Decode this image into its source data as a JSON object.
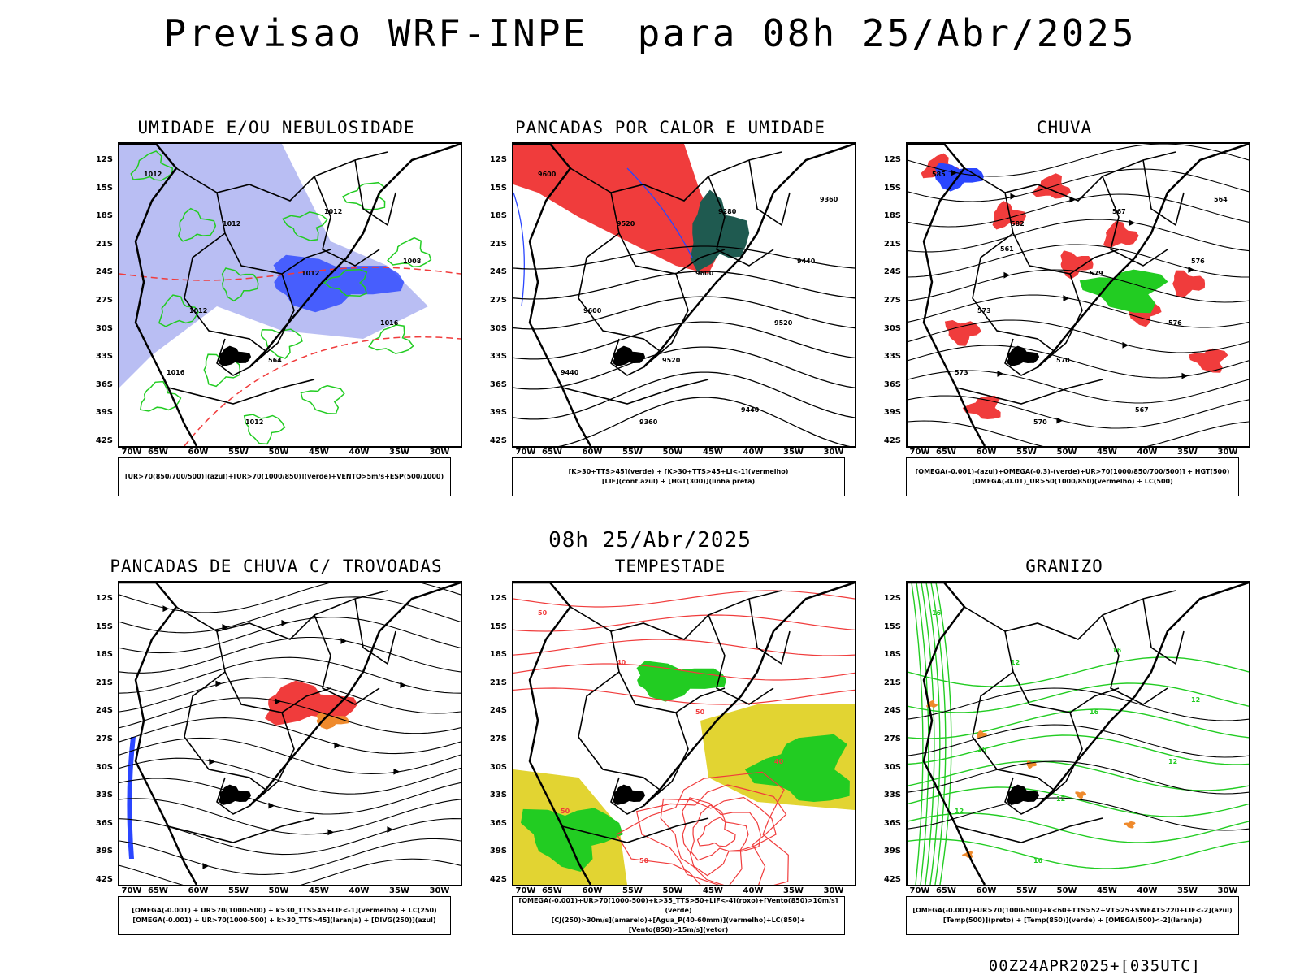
{
  "title": "Previsao WRF-INPE  para 08h 25/Abr/2025",
  "mid_date": "08h 25/Abr/2025",
  "footer": "00Z24APR2025+[035UTC]",
  "lat_labels": [
    "12S",
    "15S",
    "18S",
    "21S",
    "24S",
    "27S",
    "30S",
    "33S",
    "36S",
    "39S",
    "42S"
  ],
  "lon_labels": [
    "70W",
    "65W",
    "60W",
    "55W",
    "50W",
    "45W",
    "40W",
    "35W",
    "30W"
  ],
  "colors": {
    "red": "#f03c3c",
    "green": "#22cc22",
    "blue": "#2a46ff",
    "lightblue": "#a8aef0",
    "yellow": "#e2d432",
    "orange": "#ef8a2c",
    "darkteal": "#1f5a50"
  },
  "panels": [
    {
      "title": "UMIDADE E/OU NEBULOSIDADE",
      "legend": [
        "[UR>70(850/700/500)](azul)+[UR>70(1000/850)](verde)+VENTO>5m/s+ESP(500/1000)"
      ],
      "contours": [
        "1012",
        "1012",
        "1012",
        "1016",
        "1016",
        "1012",
        "1012",
        "1008",
        "1012",
        "564"
      ]
    },
    {
      "title": "PANCADAS POR CALOR E UMIDADE",
      "legend": [
        "[K>30+TTS>45](verde) + [K>30+TTS>45+LI<-1](vermelho)",
        "[LIF](cont.azul) + [HGT(300)](linha preta)"
      ],
      "contours": [
        "9600",
        "9520",
        "9600",
        "9520",
        "9440",
        "9360",
        "9280",
        "9440",
        "9600",
        "9520",
        "9440",
        "9360"
      ]
    },
    {
      "title": "CHUVA",
      "legend": [
        "[OMEGA(-0.001)-(azul)+OMEGA(-0.3)-(verde)+UR>70(1000/850/700/500)] + HGT(500)",
        "[OMEGA(-0.01)_UR>50(1000/850)(vermelho) + LC(500)"
      ],
      "contours": [
        "585",
        "582",
        "579",
        "576",
        "573",
        "570",
        "567",
        "576",
        "573",
        "570",
        "567",
        "564",
        "561"
      ]
    },
    {
      "title": "PANCADAS DE CHUVA C/ TROVOADAS",
      "legend": [
        "[OMEGA(-0.001) + UR>70(1000-500) + k>30_TTS>45+LIF<-1](vermelho) + LC(250)",
        "[OMEGA(-0.001) + UR>70(1000-500) + k>30_TTS>45](laranja) + [DIVG(250)](azul)"
      ],
      "contours": []
    },
    {
      "title": "TEMPESTADE",
      "legend": [
        "[OMEGA(-0.001)+UR>70(1000-500)+k>35_TTS>50+LIF<-4](roxo)+[Vento(850)>10m/s](verde)",
        "[CJ(250)>30m/s](amarelo)+[Agua_P(40-60mm)](vermelho)+LC(850)+[Vento(850)>15m/s](vetor)"
      ],
      "contours": [
        "50",
        "40",
        "50",
        "40",
        "50",
        "50"
      ]
    },
    {
      "title": "GRANIZO",
      "legend": [
        "[OMEGA(-0.001)+UR>70(1000-500)+k<60+TTS>52+VT>25+SWEAT>220+LIF<-2](azul)",
        "[Temp(500)](preto) + [Temp(850)](verde) + [OMEGA(500)<-2](laranja)"
      ],
      "contours": [
        "16",
        "12",
        "16",
        "12",
        "12",
        "16",
        "16",
        "12",
        "16",
        "12"
      ]
    }
  ]
}
